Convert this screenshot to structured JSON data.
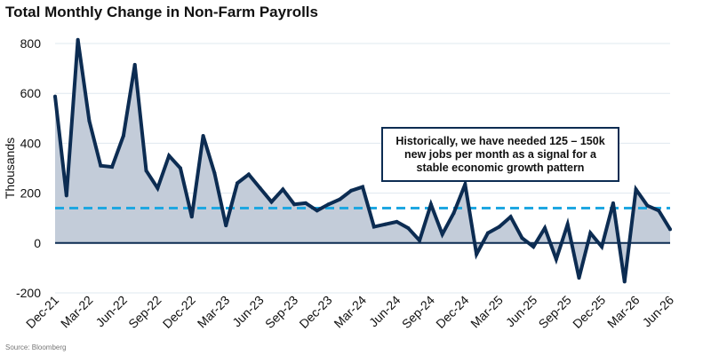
{
  "title": "Total Monthly Change in Non-Farm Payrolls",
  "source": "Source: Bloomberg",
  "annotation": "Historically, we have needed 125 – 150k new jobs per month as a signal for a stable economic growth pattern",
  "colors": {
    "line": "#0c2c52",
    "fill": "#c3ccd9",
    "reference": "#1ea7e1",
    "grid": "#dfe8ef",
    "axis": "#0c2c52"
  },
  "chart_data": {
    "type": "area",
    "title": "Total Monthly Change in Non-Farm Payrolls",
    "ylabel": "Thousands",
    "xlabel": "",
    "ylim": [
      -200,
      800
    ],
    "yticks": [
      800,
      600,
      400,
      200,
      0,
      -200
    ],
    "xtick_labels": [
      "Dec-21",
      "Mar-22",
      "Jun-22",
      "Sep-22",
      "Dec-22",
      "Mar-23",
      "Jun-23",
      "Sep-23",
      "Dec-23",
      "Mar-24",
      "Jun-24",
      "Sep-24",
      "Dec-24",
      "Mar-25",
      "Jun-25",
      "Sep-25",
      "Dec-25",
      "Mar-26",
      "Jun-26"
    ],
    "grid": true,
    "reference_line": {
      "value": 140,
      "style": "dashed"
    },
    "x": [
      "Dec-21",
      "Jan-22",
      "Feb-22",
      "Mar-22",
      "Apr-22",
      "May-22",
      "Jun-22",
      "Jul-22",
      "Aug-22",
      "Sep-22",
      "Oct-22",
      "Nov-22",
      "Dec-22",
      "Jan-23",
      "Feb-23",
      "Mar-23",
      "Apr-23",
      "May-23",
      "Jun-23",
      "Jul-23",
      "Aug-23",
      "Sep-23",
      "Oct-23",
      "Nov-23",
      "Dec-23",
      "Jan-24",
      "Feb-24",
      "Mar-24",
      "Apr-24",
      "May-24",
      "Jun-24",
      "Jul-24",
      "Aug-24",
      "Sep-24",
      "Oct-24",
      "Nov-24",
      "Dec-24",
      "Jan-25",
      "Feb-25",
      "Mar-25",
      "Apr-25",
      "May-25",
      "Jun-25",
      "Jul-25",
      "Aug-25",
      "Sep-25",
      "Oct-25",
      "Nov-25",
      "Dec-25",
      "Jan-26",
      "Feb-26",
      "Mar-26",
      "Apr-26",
      "May-26",
      "Jun-26"
    ],
    "values": [
      588,
      190,
      815,
      490,
      310,
      305,
      430,
      715,
      290,
      220,
      350,
      300,
      105,
      430,
      280,
      70,
      240,
      275,
      220,
      165,
      215,
      155,
      160,
      130,
      155,
      175,
      210,
      225,
      65,
      75,
      85,
      60,
      10,
      155,
      35,
      120,
      235,
      -45,
      40,
      65,
      105,
      20,
      -15,
      60,
      -65,
      75,
      -140,
      40,
      -15,
      160,
      -155,
      215,
      150,
      130,
      55
    ]
  }
}
